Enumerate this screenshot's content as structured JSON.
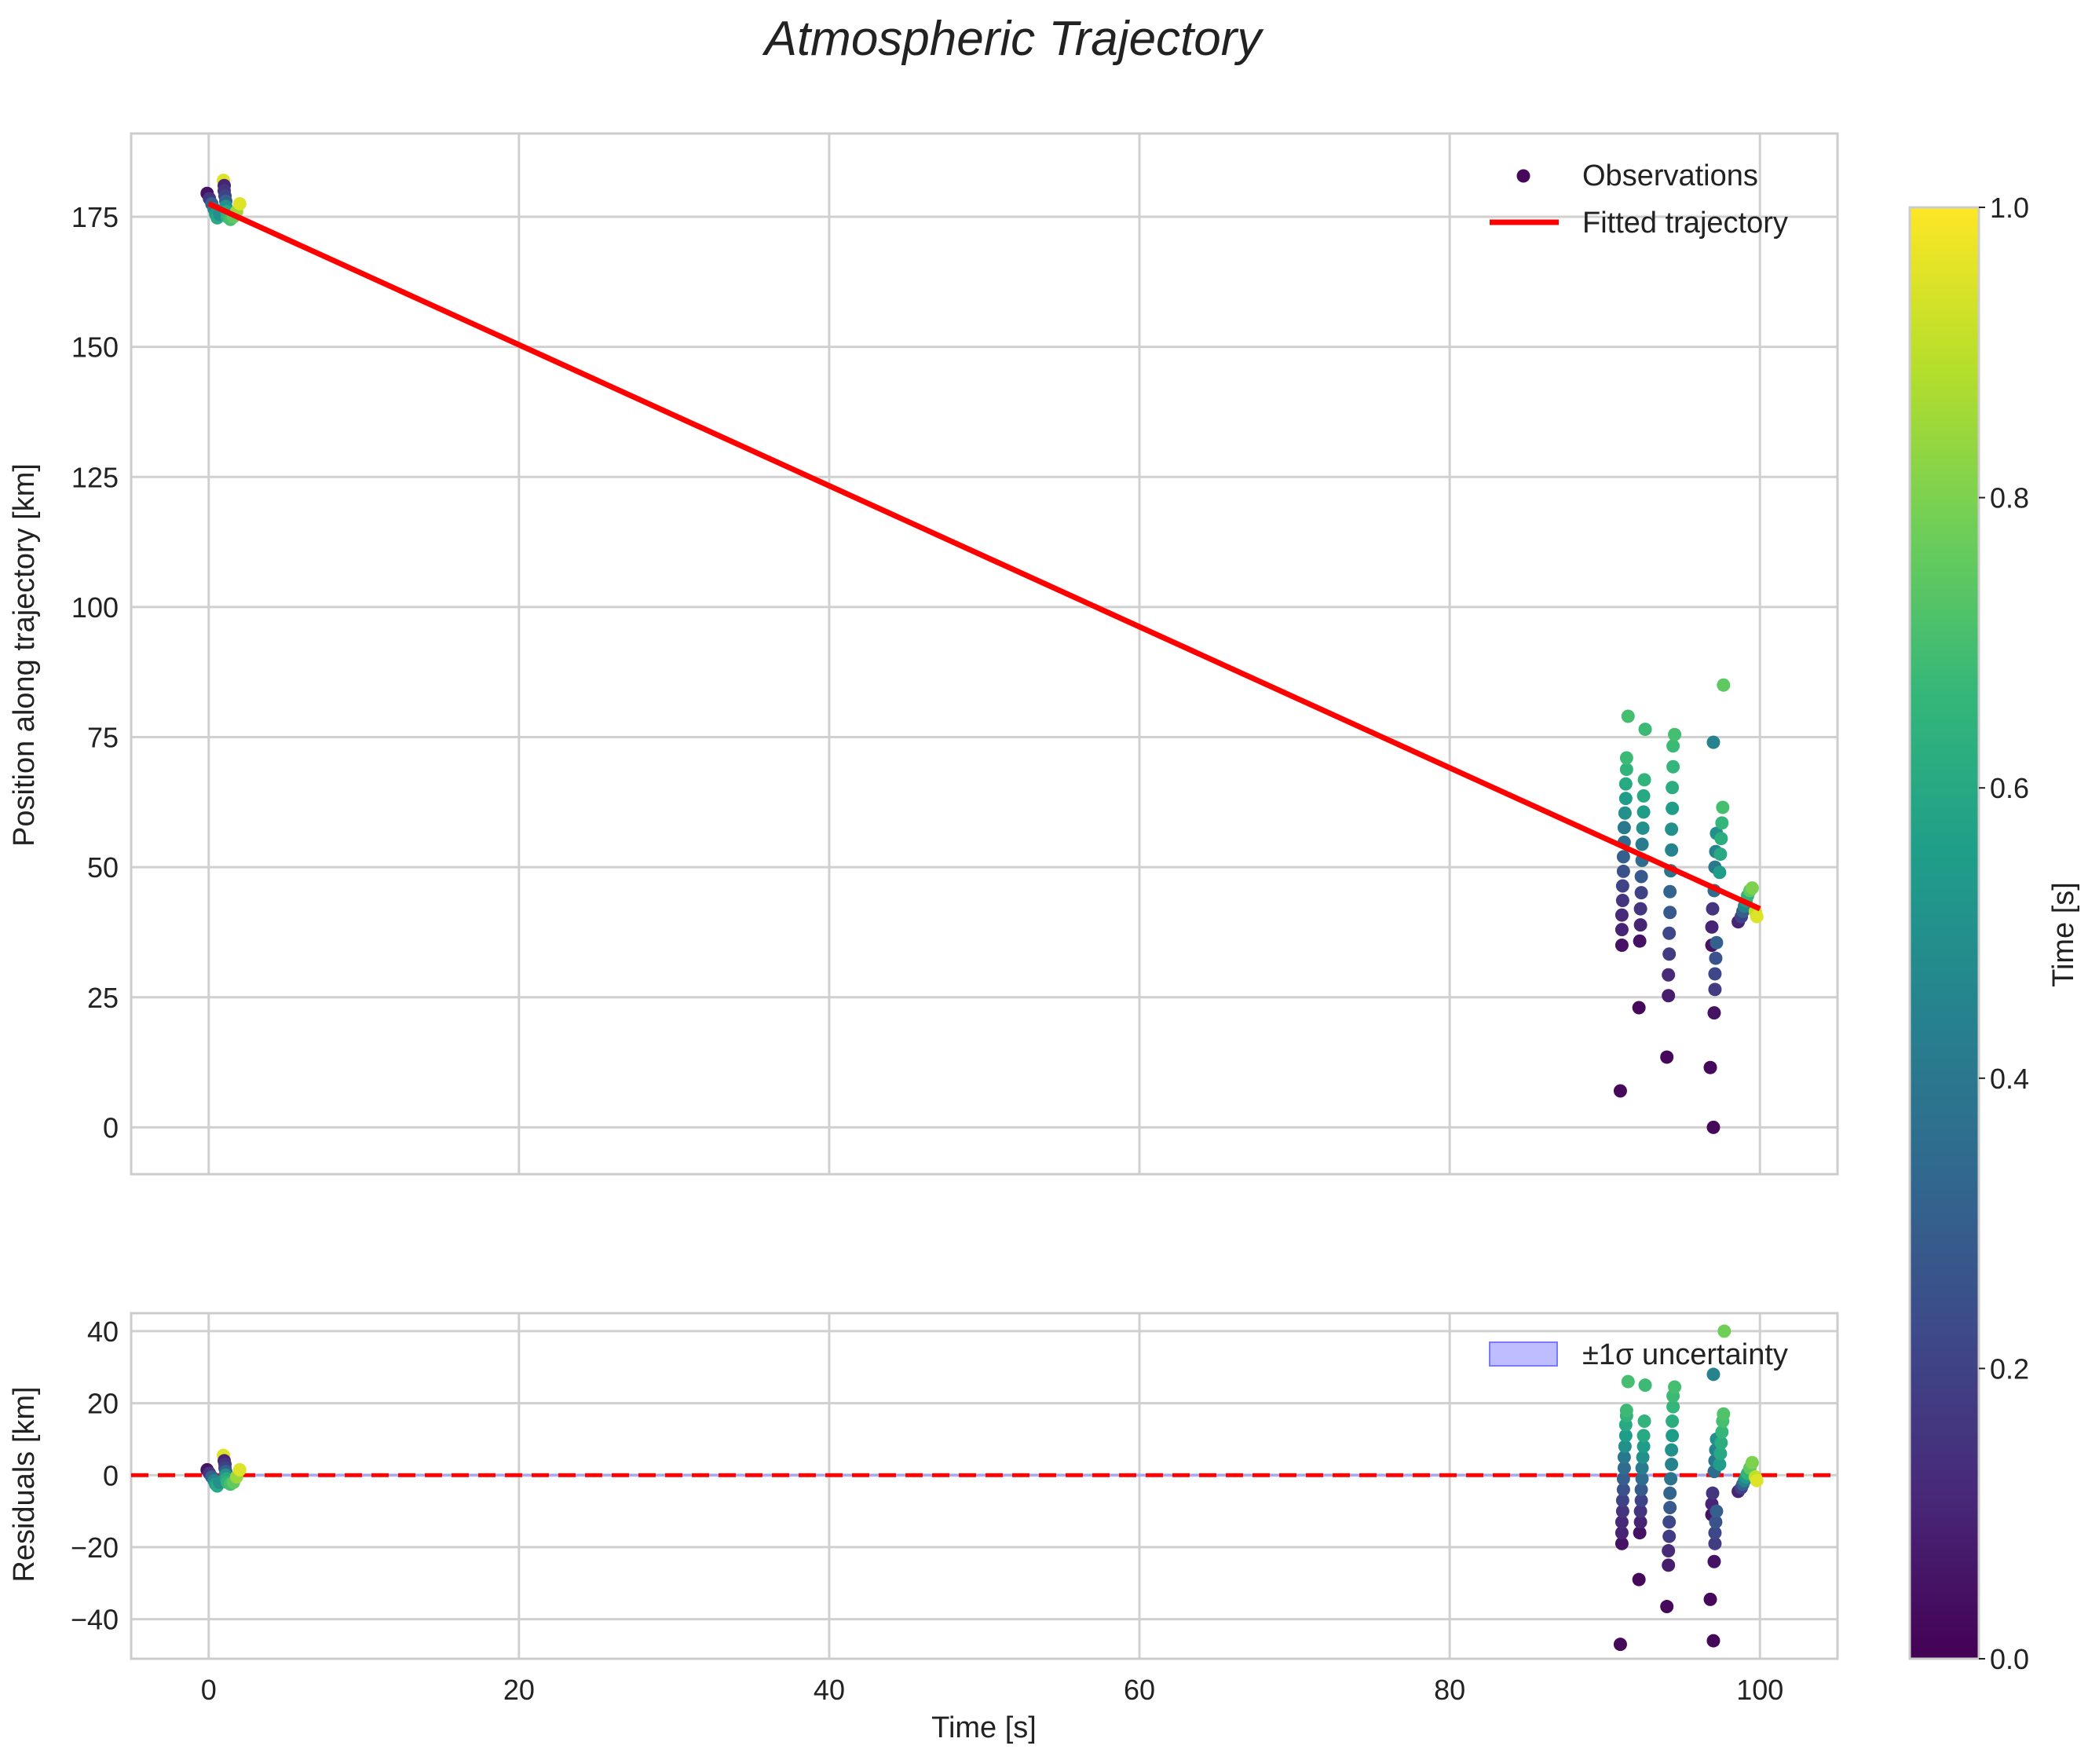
{
  "chart_data": {
    "type": "scatter",
    "title": "Atmospheric Trajectory",
    "colormap": "viridis",
    "colormap_stops": [
      "#440154",
      "#482878",
      "#3e4989",
      "#31688e",
      "#26828e",
      "#1f9e89",
      "#35b779",
      "#6ece58",
      "#b5de2b",
      "#fde725"
    ],
    "colorbar": {
      "label": "Time [s]",
      "range": [
        0,
        1
      ],
      "ticks": [
        "0.0",
        "0.2",
        "0.4",
        "0.6",
        "0.8",
        "1.0"
      ]
    },
    "top": {
      "ylabel": "Position along trajectory [km]",
      "xlim": [
        -5,
        105
      ],
      "ylim": [
        -9,
        191
      ],
      "xticks": [
        0,
        20,
        40,
        60,
        80,
        100
      ],
      "yticks": [
        0,
        25,
        50,
        75,
        100,
        125,
        150,
        175
      ],
      "yticklabels": [
        "0",
        "25",
        "50",
        "75",
        "100",
        "125",
        "150",
        "175"
      ],
      "fit_line": {
        "label": "Fitted trajectory",
        "color": "#ff0000",
        "x": [
          0,
          100
        ],
        "y": [
          177.5,
          42
        ]
      },
      "legend": {
        "observations_label": "Observations",
        "fit_label": "Fitted trajectory",
        "location": "top-right"
      },
      "clusters": [
        {
          "t": 0.0,
          "pts": [
            [
              -0.1,
              179.5,
              0.05
            ],
            [
              0.05,
              178.5,
              0.15
            ],
            [
              0.2,
              177.5,
              0.3
            ],
            [
              0.35,
              176.5,
              0.45
            ],
            [
              0.45,
              175.5,
              0.55
            ],
            [
              0.55,
              174.8,
              0.6
            ],
            [
              0.7,
              175.5,
              0.5
            ]
          ]
        },
        {
          "t": 0.95,
          "pts": [
            [
              0.95,
              182,
              0.95
            ],
            [
              1.0,
              181,
              0.1
            ],
            [
              1.0,
              180,
              0.15
            ],
            [
              1.05,
              179,
              0.2
            ],
            [
              1.1,
              178,
              0.3
            ],
            [
              1.1,
              177,
              0.5
            ],
            [
              1.15,
              176,
              0.6
            ],
            [
              1.2,
              175,
              0.65
            ],
            [
              1.4,
              174.5,
              0.7
            ],
            [
              1.6,
              175,
              0.75
            ],
            [
              1.8,
              176,
              0.85
            ],
            [
              2.0,
              177.5,
              0.95
            ]
          ]
        },
        {
          "t": 91.0,
          "pts": [
            [
              91.0,
              7,
              0.02
            ],
            [
              91.1,
              35,
              0.05
            ],
            [
              91.1,
              38,
              0.1
            ],
            [
              91.1,
              40.8,
              0.12
            ],
            [
              91.15,
              43.6,
              0.15
            ],
            [
              91.15,
              46.4,
              0.2
            ],
            [
              91.2,
              49.2,
              0.25
            ],
            [
              91.2,
              52,
              0.3
            ],
            [
              91.25,
              54.8,
              0.35
            ],
            [
              91.25,
              57.6,
              0.4
            ],
            [
              91.3,
              60.4,
              0.5
            ],
            [
              91.35,
              63.2,
              0.55
            ],
            [
              91.35,
              66,
              0.6
            ],
            [
              91.4,
              68.8,
              0.65
            ],
            [
              91.4,
              71,
              0.68
            ],
            [
              91.5,
              79,
              0.7
            ]
          ]
        },
        {
          "t": 92.2,
          "pts": [
            [
              92.2,
              23,
              0.02
            ],
            [
              92.25,
              35.8,
              0.05
            ],
            [
              92.3,
              38.9,
              0.1
            ],
            [
              92.3,
              42,
              0.15
            ],
            [
              92.35,
              45.1,
              0.2
            ],
            [
              92.35,
              48.2,
              0.28
            ],
            [
              92.4,
              51.3,
              0.35
            ],
            [
              92.4,
              54.4,
              0.42
            ],
            [
              92.45,
              57.5,
              0.5
            ],
            [
              92.5,
              60.6,
              0.55
            ],
            [
              92.5,
              63.7,
              0.6
            ],
            [
              92.55,
              66.8,
              0.65
            ],
            [
              92.6,
              76.5,
              0.68
            ]
          ]
        },
        {
          "t": 94.0,
          "pts": [
            [
              94.0,
              13.5,
              0.02
            ],
            [
              94.1,
              25.3,
              0.08
            ],
            [
              94.1,
              29.3,
              0.12
            ],
            [
              94.15,
              33.3,
              0.18
            ],
            [
              94.15,
              37.3,
              0.22
            ],
            [
              94.2,
              41.3,
              0.28
            ],
            [
              94.2,
              45.3,
              0.32
            ],
            [
              94.25,
              49.3,
              0.38
            ],
            [
              94.3,
              53.3,
              0.45
            ],
            [
              94.3,
              57.3,
              0.5
            ],
            [
              94.35,
              61.3,
              0.55
            ],
            [
              94.35,
              65.3,
              0.62
            ],
            [
              94.4,
              69.3,
              0.66
            ],
            [
              94.4,
              73.3,
              0.68
            ],
            [
              94.5,
              75.5,
              0.7
            ]
          ]
        },
        {
          "t": 97.0,
          "pts": [
            [
              96.8,
              11.5,
              0.02
            ],
            [
              96.9,
              35,
              0.05
            ],
            [
              96.9,
              38.5,
              0.1
            ],
            [
              96.95,
              42,
              0.15
            ],
            [
              97.0,
              0,
              0.02
            ],
            [
              97.05,
              22,
              0.05
            ],
            [
              97.1,
              26.5,
              0.18
            ],
            [
              97.1,
              29.5,
              0.22
            ],
            [
              97.15,
              32.5,
              0.26
            ],
            [
              97.2,
              35.5,
              0.3
            ],
            [
              97.05,
              45.5,
              0.35
            ],
            [
              97.1,
              50,
              0.4
            ],
            [
              97.15,
              53,
              0.45
            ],
            [
              97.2,
              56.5,
              0.5
            ],
            [
              97.0,
              74,
              0.45
            ],
            [
              97.4,
              49,
              0.55
            ],
            [
              97.45,
              52.5,
              0.6
            ],
            [
              97.5,
              55.5,
              0.62
            ],
            [
              97.55,
              58.5,
              0.66
            ],
            [
              97.6,
              61.5,
              0.7
            ],
            [
              97.65,
              85,
              0.75
            ]
          ]
        },
        {
          "t": 99.0,
          "pts": [
            [
              98.6,
              39.5,
              0.1
            ],
            [
              98.8,
              40.5,
              0.2
            ],
            [
              98.9,
              41.5,
              0.3
            ],
            [
              99.0,
              42.5,
              0.45
            ],
            [
              99.1,
              43.5,
              0.55
            ],
            [
              99.2,
              44.5,
              0.65
            ],
            [
              99.35,
              45.5,
              0.75
            ],
            [
              99.5,
              46,
              0.8
            ],
            [
              99.7,
              41.5,
              0.9
            ],
            [
              99.8,
              40.5,
              0.95
            ]
          ]
        }
      ]
    },
    "bottom": {
      "ylabel": "Residuals [km]",
      "xlabel": "Time [s]",
      "xlim": [
        -5,
        105
      ],
      "ylim": [
        -51,
        45
      ],
      "xticks": [
        0,
        20,
        40,
        60,
        80,
        100
      ],
      "xticklabels": [
        "0",
        "20",
        "40",
        "60",
        "80",
        "100"
      ],
      "yticks": [
        -40,
        -20,
        0,
        20,
        40
      ],
      "yticklabels": [
        "−40",
        "−20",
        "0",
        "20",
        "40"
      ],
      "zero_line": {
        "y": 0,
        "color": "#ff0000",
        "style": "dashed"
      },
      "band_label": "±1σ uncertainty",
      "band_color": "#7b7bff",
      "clusters": [
        {
          "pts": [
            [
              -0.1,
              1.5,
              0.05
            ],
            [
              0.05,
              0.5,
              0.15
            ],
            [
              0.2,
              -0.5,
              0.3
            ],
            [
              0.35,
              -1.5,
              0.45
            ],
            [
              0.45,
              -2.5,
              0.55
            ],
            [
              0.55,
              -3,
              0.6
            ],
            [
              0.7,
              -2,
              0.5
            ]
          ]
        },
        {
          "pts": [
            [
              0.95,
              5.5,
              0.95
            ],
            [
              1.0,
              4,
              0.1
            ],
            [
              1.05,
              3,
              0.15
            ],
            [
              1.05,
              2,
              0.2
            ],
            [
              1.1,
              1,
              0.3
            ],
            [
              1.1,
              0,
              0.5
            ],
            [
              1.15,
              -1,
              0.6
            ],
            [
              1.2,
              -2,
              0.65
            ],
            [
              1.4,
              -2.5,
              0.7
            ],
            [
              1.6,
              -2,
              0.75
            ],
            [
              1.8,
              -0.5,
              0.85
            ],
            [
              2.0,
              1.5,
              0.95
            ]
          ]
        },
        {
          "pts": [
            [
              91.0,
              -47,
              0.02
            ],
            [
              91.1,
              -19,
              0.05
            ],
            [
              91.1,
              -16,
              0.1
            ],
            [
              91.1,
              -13,
              0.12
            ],
            [
              91.15,
              -10,
              0.15
            ],
            [
              91.15,
              -7,
              0.2
            ],
            [
              91.2,
              -4,
              0.25
            ],
            [
              91.2,
              -1,
              0.3
            ],
            [
              91.25,
              2,
              0.35
            ],
            [
              91.25,
              5,
              0.4
            ],
            [
              91.3,
              8,
              0.5
            ],
            [
              91.35,
              11,
              0.55
            ],
            [
              91.35,
              14,
              0.6
            ],
            [
              91.4,
              16.5,
              0.65
            ],
            [
              91.4,
              18,
              0.68
            ],
            [
              91.5,
              26,
              0.7
            ]
          ]
        },
        {
          "pts": [
            [
              92.2,
              -29,
              0.02
            ],
            [
              92.25,
              -16,
              0.05
            ],
            [
              92.3,
              -13,
              0.1
            ],
            [
              92.3,
              -10,
              0.15
            ],
            [
              92.35,
              -7,
              0.2
            ],
            [
              92.35,
              -4,
              0.28
            ],
            [
              92.4,
              -1,
              0.35
            ],
            [
              92.4,
              2,
              0.42
            ],
            [
              92.45,
              5,
              0.5
            ],
            [
              92.5,
              8,
              0.55
            ],
            [
              92.5,
              11,
              0.6
            ],
            [
              92.55,
              15,
              0.65
            ],
            [
              92.6,
              25,
              0.68
            ]
          ]
        },
        {
          "pts": [
            [
              94.0,
              -36.5,
              0.02
            ],
            [
              94.1,
              -25,
              0.08
            ],
            [
              94.1,
              -21,
              0.12
            ],
            [
              94.15,
              -17,
              0.18
            ],
            [
              94.15,
              -13,
              0.22
            ],
            [
              94.2,
              -9,
              0.28
            ],
            [
              94.2,
              -5,
              0.32
            ],
            [
              94.25,
              -1,
              0.38
            ],
            [
              94.3,
              3,
              0.45
            ],
            [
              94.3,
              7,
              0.5
            ],
            [
              94.35,
              11,
              0.55
            ],
            [
              94.35,
              15,
              0.62
            ],
            [
              94.4,
              19,
              0.66
            ],
            [
              94.4,
              22,
              0.68
            ],
            [
              94.5,
              24.5,
              0.7
            ]
          ]
        },
        {
          "pts": [
            [
              96.8,
              -34.5,
              0.02
            ],
            [
              96.9,
              -11,
              0.05
            ],
            [
              96.9,
              -8,
              0.1
            ],
            [
              96.95,
              -5,
              0.15
            ],
            [
              97.0,
              -46,
              0.02
            ],
            [
              97.05,
              -24,
              0.05
            ],
            [
              97.1,
              -19,
              0.18
            ],
            [
              97.1,
              -16,
              0.22
            ],
            [
              97.15,
              -13,
              0.26
            ],
            [
              97.2,
              -10,
              0.3
            ],
            [
              97.05,
              1,
              0.35
            ],
            [
              97.1,
              4,
              0.4
            ],
            [
              97.15,
              7,
              0.45
            ],
            [
              97.2,
              10,
              0.5
            ],
            [
              97.0,
              28,
              0.45
            ],
            [
              97.4,
              3,
              0.55
            ],
            [
              97.45,
              6,
              0.6
            ],
            [
              97.5,
              9,
              0.62
            ],
            [
              97.55,
              12,
              0.66
            ],
            [
              97.6,
              15,
              0.7
            ],
            [
              97.65,
              17,
              0.72
            ],
            [
              97.7,
              40,
              0.78
            ]
          ]
        },
        {
          "pts": [
            [
              98.6,
              -4.5,
              0.1
            ],
            [
              98.8,
              -3.5,
              0.2
            ],
            [
              98.9,
              -2.5,
              0.3
            ],
            [
              99.0,
              -1.5,
              0.45
            ],
            [
              99.1,
              -0.5,
              0.55
            ],
            [
              99.2,
              0.5,
              0.65
            ],
            [
              99.35,
              2,
              0.75
            ],
            [
              99.5,
              3.5,
              0.8
            ],
            [
              99.7,
              -0.5,
              0.9
            ],
            [
              99.8,
              -1.5,
              0.95
            ]
          ]
        }
      ]
    }
  }
}
